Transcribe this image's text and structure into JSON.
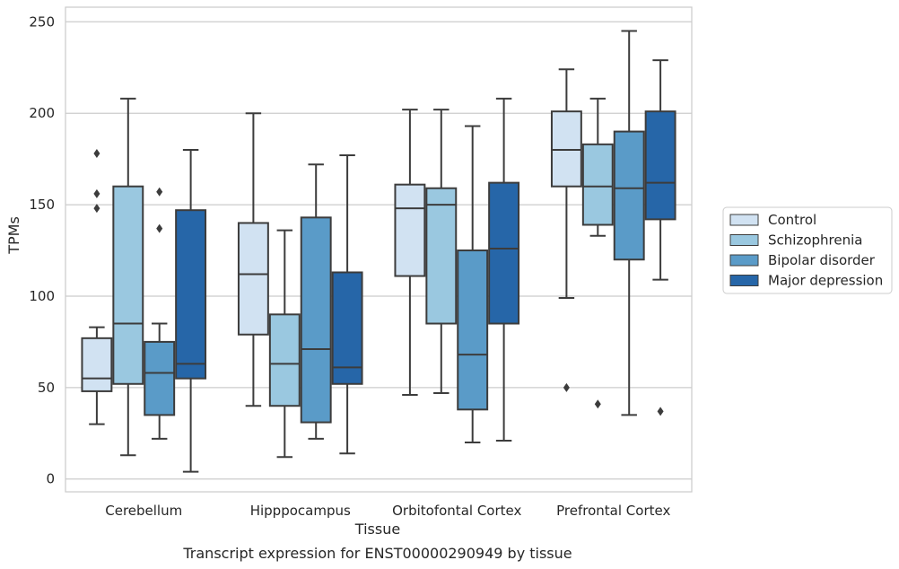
{
  "chart_data": {
    "type": "box",
    "title": "",
    "caption": "Transcript expression for ENST00000290949 by tissue",
    "xlabel": "Tissue",
    "ylabel": "TPMs",
    "ylim": [
      -7,
      258
    ],
    "yticks": [
      0,
      50,
      100,
      150,
      200,
      250
    ],
    "grid": "horizontal",
    "legend_position": "right",
    "categories": [
      "Cerebellum",
      "Hipppocampus",
      "Orbitofontal Cortex",
      "Prefrontal Cortex"
    ],
    "series": [
      {
        "name": "Control",
        "color": "#d1e2f2",
        "boxes": [
          {
            "whisker_low": 30,
            "q1": 48,
            "median": 55,
            "q3": 77,
            "whisker_high": 83,
            "outliers": [
              178,
              156,
              148
            ]
          },
          {
            "whisker_low": 40,
            "q1": 79,
            "median": 112,
            "q3": 140,
            "whisker_high": 200,
            "outliers": []
          },
          {
            "whisker_low": 46,
            "q1": 111,
            "median": 148,
            "q3": 161,
            "whisker_high": 202,
            "outliers": []
          },
          {
            "whisker_low": 99,
            "q1": 160,
            "median": 180,
            "q3": 201,
            "whisker_high": 224,
            "outliers": [
              50
            ]
          }
        ]
      },
      {
        "name": "Schizophrenia",
        "color": "#9ac8e0",
        "boxes": [
          {
            "whisker_low": 13,
            "q1": 52,
            "median": 85,
            "q3": 160,
            "whisker_high": 208,
            "outliers": []
          },
          {
            "whisker_low": 12,
            "q1": 40,
            "median": 63,
            "q3": 90,
            "whisker_high": 136,
            "outliers": []
          },
          {
            "whisker_low": 47,
            "q1": 85,
            "median": 150,
            "q3": 159,
            "whisker_high": 202,
            "outliers": []
          },
          {
            "whisker_low": 133,
            "q1": 139,
            "median": 160,
            "q3": 183,
            "whisker_high": 208,
            "outliers": [
              41
            ]
          }
        ]
      },
      {
        "name": "Bipolar disorder",
        "color": "#5a9bc8",
        "boxes": [
          {
            "whisker_low": 22,
            "q1": 35,
            "median": 58,
            "q3": 75,
            "whisker_high": 85,
            "outliers": [
              157,
              137
            ]
          },
          {
            "whisker_low": 22,
            "q1": 31,
            "median": 71,
            "q3": 143,
            "whisker_high": 172,
            "outliers": []
          },
          {
            "whisker_low": 20,
            "q1": 38,
            "median": 68,
            "q3": 125,
            "whisker_high": 193,
            "outliers": []
          },
          {
            "whisker_low": 35,
            "q1": 120,
            "median": 159,
            "q3": 190,
            "whisker_high": 245,
            "outliers": []
          }
        ]
      },
      {
        "name": "Major depression",
        "color": "#2666a8",
        "boxes": [
          {
            "whisker_low": 4,
            "q1": 55,
            "median": 63,
            "q3": 147,
            "whisker_high": 180,
            "outliers": []
          },
          {
            "whisker_low": 14,
            "q1": 52,
            "median": 61,
            "q3": 113,
            "whisker_high": 177,
            "outliers": []
          },
          {
            "whisker_low": 21,
            "q1": 85,
            "median": 126,
            "q3": 162,
            "whisker_high": 208,
            "outliers": []
          },
          {
            "whisker_low": 109,
            "q1": 142,
            "median": 162,
            "q3": 201,
            "whisker_high": 229,
            "outliers": [
              37
            ]
          }
        ]
      }
    ]
  }
}
